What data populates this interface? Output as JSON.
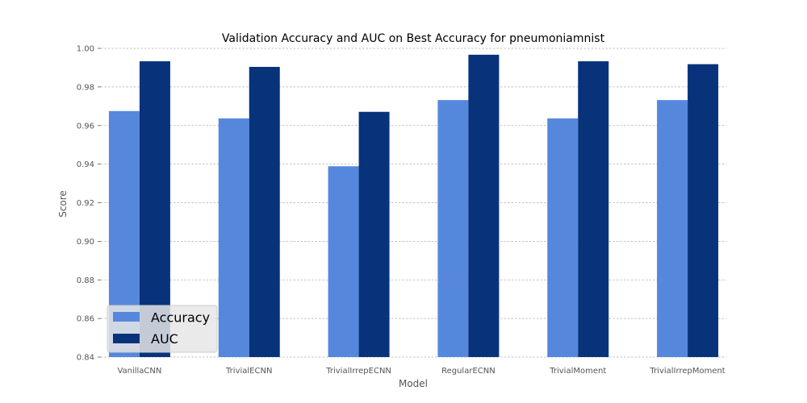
{
  "chart_data": {
    "type": "bar",
    "title": "Validation Accuracy and AUC on Best Accuracy for pneumoniamnist",
    "xlabel": "Model",
    "ylabel": "Score",
    "ylim": [
      0.84,
      1.0
    ],
    "yticks": [
      "0.84",
      "0.86",
      "0.88",
      "0.90",
      "0.92",
      "0.94",
      "0.96",
      "0.98",
      "1.00"
    ],
    "grid": "horizontal-dashed",
    "legend_position": "lower-left",
    "categories": [
      "VanillaCNN",
      "TrivialECNN",
      "TrivialIrrepECNN",
      "RegularECNN",
      "TrivialMoment",
      "TrivialIrrepMoment"
    ],
    "series": [
      {
        "name": "Accuracy",
        "color": "#5588dd",
        "values": [
          0.9675,
          0.9637,
          0.9389,
          0.9732,
          0.9637,
          0.9732
        ]
      },
      {
        "name": "AUC",
        "color": "#08337b",
        "values": [
          0.9933,
          0.9904,
          0.9671,
          0.9967,
          0.9933,
          0.9918
        ]
      }
    ]
  }
}
